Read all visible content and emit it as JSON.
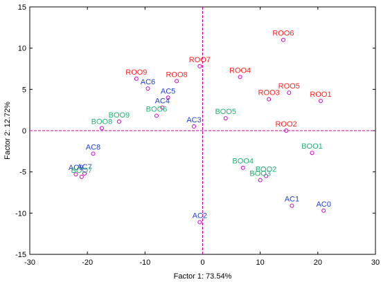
{
  "chart_data": {
    "type": "scatter",
    "xlabel": "Factor 1: 73.54%",
    "ylabel": "Factor 2: 12.72%",
    "xlim": [
      -30,
      30
    ],
    "ylim": [
      -15,
      15
    ],
    "xticks": [
      -30,
      -20,
      -10,
      0,
      10,
      20,
      30
    ],
    "yticks": [
      -15,
      -10,
      -5,
      0,
      5,
      10,
      15
    ],
    "reference_lines": {
      "x": 0,
      "y": 0,
      "style": "dashed",
      "color": "#cc0099"
    },
    "marker": {
      "shape": "circle",
      "fill": "none",
      "color": "#cc00cc"
    },
    "colors": {
      "ROO": "#ff2020",
      "BOO": "#20b070",
      "AC": "#2040d0"
    },
    "points": [
      {
        "label": "ROO6",
        "group": "ROO",
        "x": 14.0,
        "y": 11.0
      },
      {
        "label": "ROO7",
        "group": "ROO",
        "x": -0.5,
        "y": 7.8
      },
      {
        "label": "ROO4",
        "group": "ROO",
        "x": 6.5,
        "y": 6.5
      },
      {
        "label": "ROO9",
        "group": "ROO",
        "x": -11.5,
        "y": 6.3
      },
      {
        "label": "ROO8",
        "group": "ROO",
        "x": -4.5,
        "y": 6.0
      },
      {
        "label": "ROO5",
        "group": "ROO",
        "x": 15.0,
        "y": 4.6
      },
      {
        "label": "ROO3",
        "group": "ROO",
        "x": 11.5,
        "y": 3.8
      },
      {
        "label": "ROO1",
        "group": "ROO",
        "x": 20.5,
        "y": 3.6
      },
      {
        "label": "ROO2",
        "group": "ROO",
        "x": 14.5,
        "y": 0.0
      },
      {
        "label": "AC6",
        "group": "AC",
        "x": -9.5,
        "y": 5.1
      },
      {
        "label": "AC5",
        "group": "AC",
        "x": -6.0,
        "y": 4.0
      },
      {
        "label": "AC4",
        "group": "AC",
        "x": -7.0,
        "y": 2.8
      },
      {
        "label": "AC3",
        "group": "AC",
        "x": -1.5,
        "y": 0.5
      },
      {
        "label": "AC8",
        "group": "AC",
        "x": -19.0,
        "y": -2.8
      },
      {
        "label": "AC9",
        "group": "AC",
        "x": -22.0,
        "y": -5.3
      },
      {
        "label": "AC7",
        "group": "AC",
        "x": -20.5,
        "y": -5.2
      },
      {
        "label": "AC2",
        "group": "AC",
        "x": -0.5,
        "y": -11.1
      },
      {
        "label": "AC1",
        "group": "AC",
        "x": 15.5,
        "y": -9.1
      },
      {
        "label": "AC0",
        "group": "AC",
        "x": 21.0,
        "y": -9.7
      },
      {
        "label": "BOO6",
        "group": "BOO",
        "x": -8.0,
        "y": 1.8
      },
      {
        "label": "BOO9",
        "group": "BOO",
        "x": -14.5,
        "y": 1.1
      },
      {
        "label": "BOO8",
        "group": "BOO",
        "x": -17.5,
        "y": 0.3
      },
      {
        "label": "BOO5",
        "group": "BOO",
        "x": 4.0,
        "y": 1.5
      },
      {
        "label": "BOO1",
        "group": "BOO",
        "x": 19.0,
        "y": -2.7
      },
      {
        "label": "BOO4",
        "group": "BOO",
        "x": 7.0,
        "y": -4.5
      },
      {
        "label": "BOO2",
        "group": "BOO",
        "x": 11.0,
        "y": -5.5
      },
      {
        "label": "BOO3",
        "group": "BOO",
        "x": 10.0,
        "y": -6.0
      },
      {
        "label": "BOO7",
        "group": "BOO",
        "x": -21.0,
        "y": -5.6
      }
    ]
  }
}
